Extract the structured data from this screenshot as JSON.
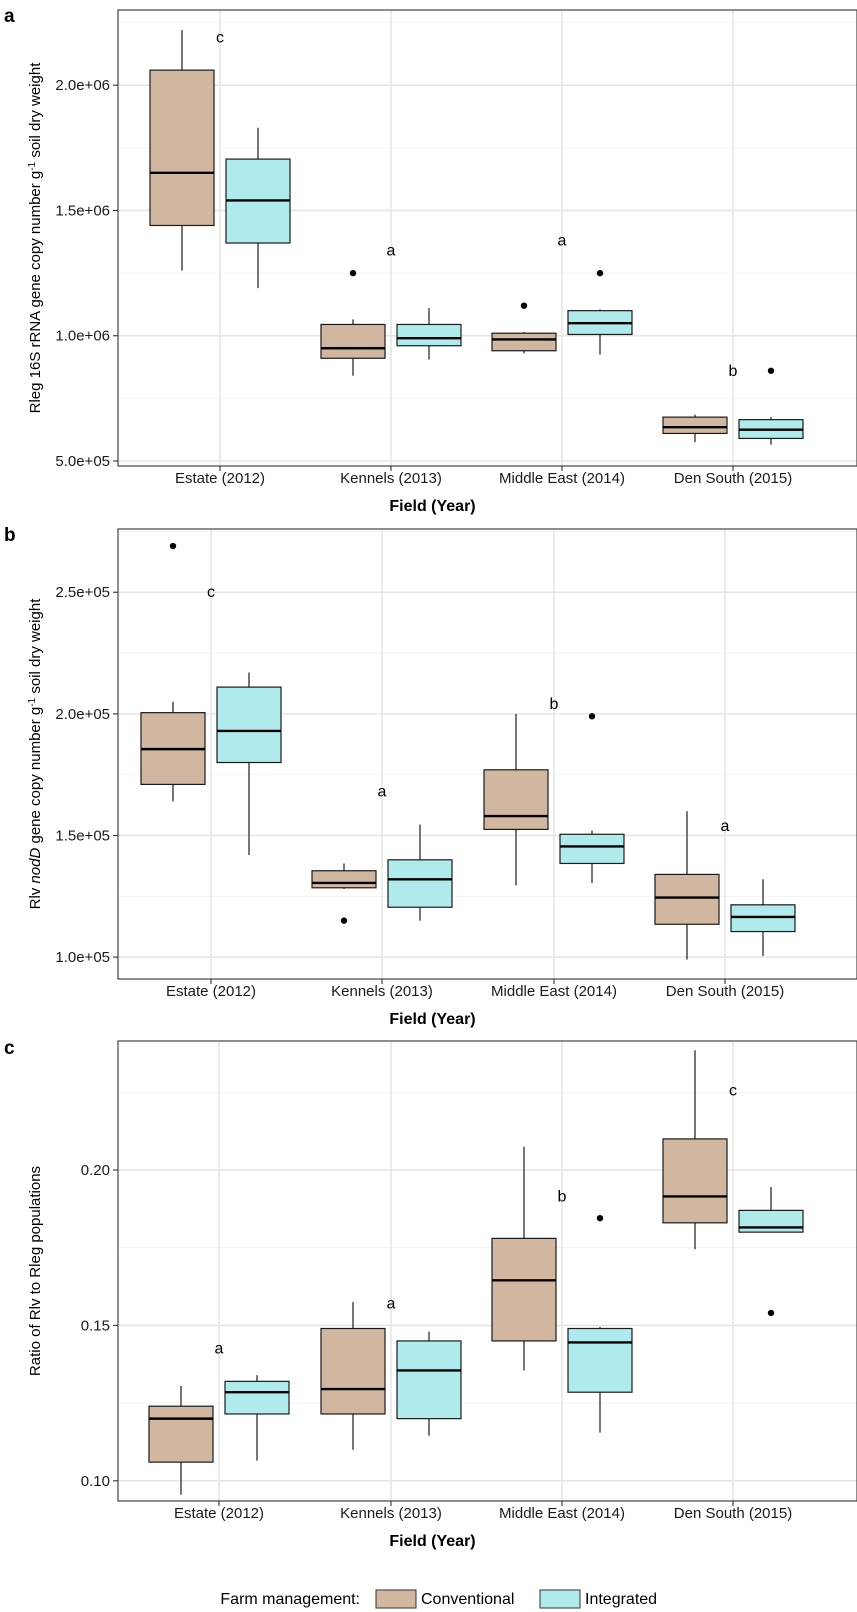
{
  "chart_data": [
    {
      "type": "box",
      "panel": "a",
      "xlabel": "Field (Year)",
      "ylabel_parts": [
        "Rleg 16S rRNA gene copy number g",
        "-1",
        " soil dry weight"
      ],
      "ylim": [
        480000,
        2300000
      ],
      "yticks": [
        500000,
        1000000,
        1500000,
        2000000
      ],
      "ytick_labels": [
        "5.0e+05",
        "1.0e+06",
        "1.5e+06",
        "2.0e+06"
      ],
      "categories": [
        "Estate (2012)",
        "Kennels (2013)",
        "Middle East (2014)",
        "Den South (2015)"
      ],
      "letters": [
        {
          "text": "c",
          "value": 2190000
        },
        {
          "text": "a",
          "value": 1340000
        },
        {
          "text": "a",
          "value": 1380000
        },
        {
          "text": "b",
          "value": 860000
        }
      ],
      "series": [
        {
          "name": "Conventional",
          "boxes": [
            {
              "low": 1260000,
              "q1": 1440000,
              "median": 1650000,
              "q3": 2060000,
              "high": 2220000,
              "outliers": []
            },
            {
              "low": 840000,
              "q1": 910000,
              "median": 950000,
              "q3": 1045000,
              "high": 1065000,
              "outliers": [
                1250000
              ]
            },
            {
              "low": 930000,
              "q1": 940000,
              "median": 985000,
              "q3": 1010000,
              "high": 1015000,
              "outliers": [
                1120000
              ]
            },
            {
              "low": 575000,
              "q1": 610000,
              "median": 635000,
              "q3": 675000,
              "high": 685000,
              "outliers": []
            }
          ]
        },
        {
          "name": "Integrated",
          "boxes": [
            {
              "low": 1190000,
              "q1": 1370000,
              "median": 1540000,
              "q3": 1705000,
              "high": 1830000,
              "outliers": []
            },
            {
              "low": 905000,
              "q1": 960000,
              "median": 990000,
              "q3": 1045000,
              "high": 1110000,
              "outliers": []
            },
            {
              "low": 925000,
              "q1": 1005000,
              "median": 1050000,
              "q3": 1100000,
              "high": 1105000,
              "outliers": [
                1250000
              ]
            },
            {
              "low": 565000,
              "q1": 590000,
              "median": 625000,
              "q3": 665000,
              "high": 675000,
              "outliers": [
                860000
              ]
            }
          ]
        }
      ]
    },
    {
      "type": "box",
      "panel": "b",
      "xlabel": "Field (Year)",
      "ylabel_parts": [
        "Rlv ",
        "nodD",
        " gene copy number g",
        "-1",
        " soil dry weight"
      ],
      "ylim": [
        91000,
        276000
      ],
      "yticks": [
        100000,
        150000,
        200000,
        250000
      ],
      "ytick_labels": [
        "1.0e+05",
        "1.5e+05",
        "2.0e+05",
        "2.5e+05"
      ],
      "categories": [
        "Estate (2012)",
        "Kennels (2013)",
        "Middle East (2014)",
        "Den South (2015)"
      ],
      "letters": [
        {
          "text": "c",
          "value": 250000
        },
        {
          "text": "a",
          "value": 168000
        },
        {
          "text": "b",
          "value": 204000
        },
        {
          "text": "a",
          "value": 154000
        }
      ],
      "series": [
        {
          "name": "Conventional",
          "boxes": [
            {
              "low": 164000,
              "q1": 171000,
              "median": 185500,
              "q3": 200500,
              "high": 205000,
              "outliers": [
                269000
              ]
            },
            {
              "low": 128000,
              "q1": 128500,
              "median": 130500,
              "q3": 135500,
              "high": 138500,
              "outliers": [
                115000
              ]
            },
            {
              "low": 129500,
              "q1": 152500,
              "median": 158000,
              "q3": 177000,
              "high": 200000,
              "outliers": []
            },
            {
              "low": 99000,
              "q1": 113500,
              "median": 124500,
              "q3": 134000,
              "high": 160000,
              "outliers": []
            }
          ]
        },
        {
          "name": "Integrated",
          "boxes": [
            {
              "low": 142000,
              "q1": 180000,
              "median": 193000,
              "q3": 211000,
              "high": 217000,
              "outliers": []
            },
            {
              "low": 115000,
              "q1": 120500,
              "median": 132000,
              "q3": 140000,
              "high": 154500,
              "outliers": []
            },
            {
              "low": 130500,
              "q1": 138500,
              "median": 145500,
              "q3": 150500,
              "high": 152000,
              "outliers": [
                199000
              ]
            },
            {
              "low": 100500,
              "q1": 110500,
              "median": 116500,
              "q3": 121500,
              "high": 132000,
              "outliers": []
            }
          ]
        }
      ]
    },
    {
      "type": "box",
      "panel": "c",
      "xlabel": "Field (Year)",
      "ylabel_parts": [
        "Ratio of Rlv to Rleg populations"
      ],
      "ylim": [
        0.0935,
        0.2415
      ],
      "yticks": [
        0.1,
        0.15,
        0.2
      ],
      "ytick_labels": [
        "0.10",
        "0.15",
        "0.20"
      ],
      "categories": [
        "Estate (2012)",
        "Kennels (2013)",
        "Middle East (2014)",
        "Den South (2015)"
      ],
      "letters": [
        {
          "text": "a",
          "value": 0.1425
        },
        {
          "text": "a",
          "value": 0.157
        },
        {
          "text": "b",
          "value": 0.1915
        },
        {
          "text": "c",
          "value": 0.2255
        }
      ],
      "series": [
        {
          "name": "Conventional",
          "boxes": [
            {
              "low": 0.0955,
              "q1": 0.106,
              "median": 0.12,
              "q3": 0.124,
              "high": 0.1305,
              "outliers": []
            },
            {
              "low": 0.11,
              "q1": 0.1215,
              "median": 0.1295,
              "q3": 0.149,
              "high": 0.1575,
              "outliers": []
            },
            {
              "low": 0.1355,
              "q1": 0.145,
              "median": 0.1645,
              "q3": 0.178,
              "high": 0.2075,
              "outliers": []
            },
            {
              "low": 0.1745,
              "q1": 0.183,
              "median": 0.1915,
              "q3": 0.21,
              "high": 0.2385,
              "outliers": []
            }
          ]
        },
        {
          "name": "Integrated",
          "boxes": [
            {
              "low": 0.1065,
              "q1": 0.1215,
              "median": 0.1285,
              "q3": 0.132,
              "high": 0.134,
              "outliers": []
            },
            {
              "low": 0.1145,
              "q1": 0.12,
              "median": 0.1355,
              "q3": 0.145,
              "high": 0.148,
              "outliers": []
            },
            {
              "low": 0.1155,
              "q1": 0.1285,
              "median": 0.1445,
              "q3": 0.149,
              "high": 0.1495,
              "outliers": [
                0.1845
              ]
            },
            {
              "low": 0.18,
              "q1": 0.18,
              "median": 0.1815,
              "q3": 0.187,
              "high": 0.1945,
              "outliers": [
                0.154
              ]
            }
          ]
        }
      ]
    }
  ],
  "legend": {
    "title": "Farm management:",
    "items": [
      {
        "label": "Conventional",
        "color": "#d2b7a0"
      },
      {
        "label": "Integrated",
        "color": "#afeaec"
      }
    ]
  },
  "colors": {
    "Conventional": "#d2b7a0",
    "Integrated": "#afeaec"
  }
}
